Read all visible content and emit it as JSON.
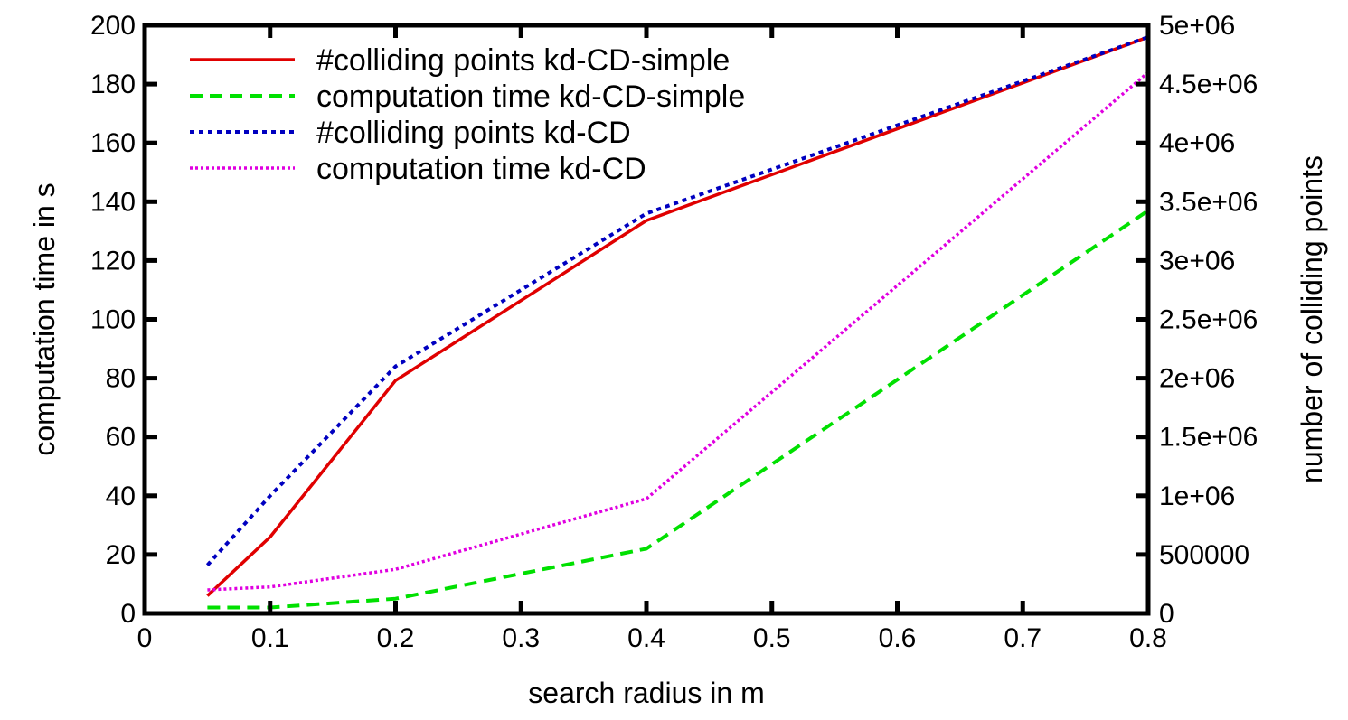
{
  "chart_data": {
    "type": "line",
    "xlabel": "search radius in m",
    "ylabel": "computation time in s",
    "y2label": "number of colliding points",
    "xlim": [
      0,
      0.8
    ],
    "ylim": [
      0,
      200
    ],
    "y2lim": [
      0,
      5000000
    ],
    "xticks": [
      "0",
      "0.1",
      "0.2",
      "0.3",
      "0.4",
      "0.5",
      "0.6",
      "0.7",
      "0.8"
    ],
    "yticks": [
      "0",
      "20",
      "40",
      "60",
      "80",
      "100",
      "120",
      "140",
      "160",
      "180",
      "200"
    ],
    "y2ticks": [
      "0",
      "500000",
      "1e+06",
      "1.5e+06",
      "2e+06",
      "2.5e+06",
      "3e+06",
      "3.5e+06",
      "4e+06",
      "4.5e+06",
      "5e+06"
    ],
    "grid": false,
    "legend_position": "top-left",
    "series": [
      {
        "name": "#colliding points kd-CD-simple",
        "axis": "right",
        "color": "#e00000",
        "style": "solid",
        "x": [
          0.05,
          0.1,
          0.2,
          0.4,
          0.8
        ],
        "y": [
          150000,
          650000,
          1980000,
          3340000,
          4900000
        ]
      },
      {
        "name": "computation time kd-CD-simple",
        "axis": "left",
        "color": "#00e000",
        "style": "dashed",
        "x": [
          0.05,
          0.1,
          0.2,
          0.4,
          0.8
        ],
        "y": [
          2,
          2,
          5,
          22,
          137
        ]
      },
      {
        "name": "#colliding points kd-CD",
        "axis": "right",
        "color": "#0000c0",
        "style": "dotted",
        "x": [
          0.05,
          0.1,
          0.2,
          0.4,
          0.8
        ],
        "y": [
          410000,
          1000000,
          2100000,
          3400000,
          4900000
        ]
      },
      {
        "name": "computation time kd-CD",
        "axis": "left",
        "color": "#e000e0",
        "style": "dotted-fine",
        "x": [
          0.05,
          0.1,
          0.2,
          0.4,
          0.8
        ],
        "y": [
          8,
          9,
          15,
          39,
          184
        ]
      }
    ]
  }
}
